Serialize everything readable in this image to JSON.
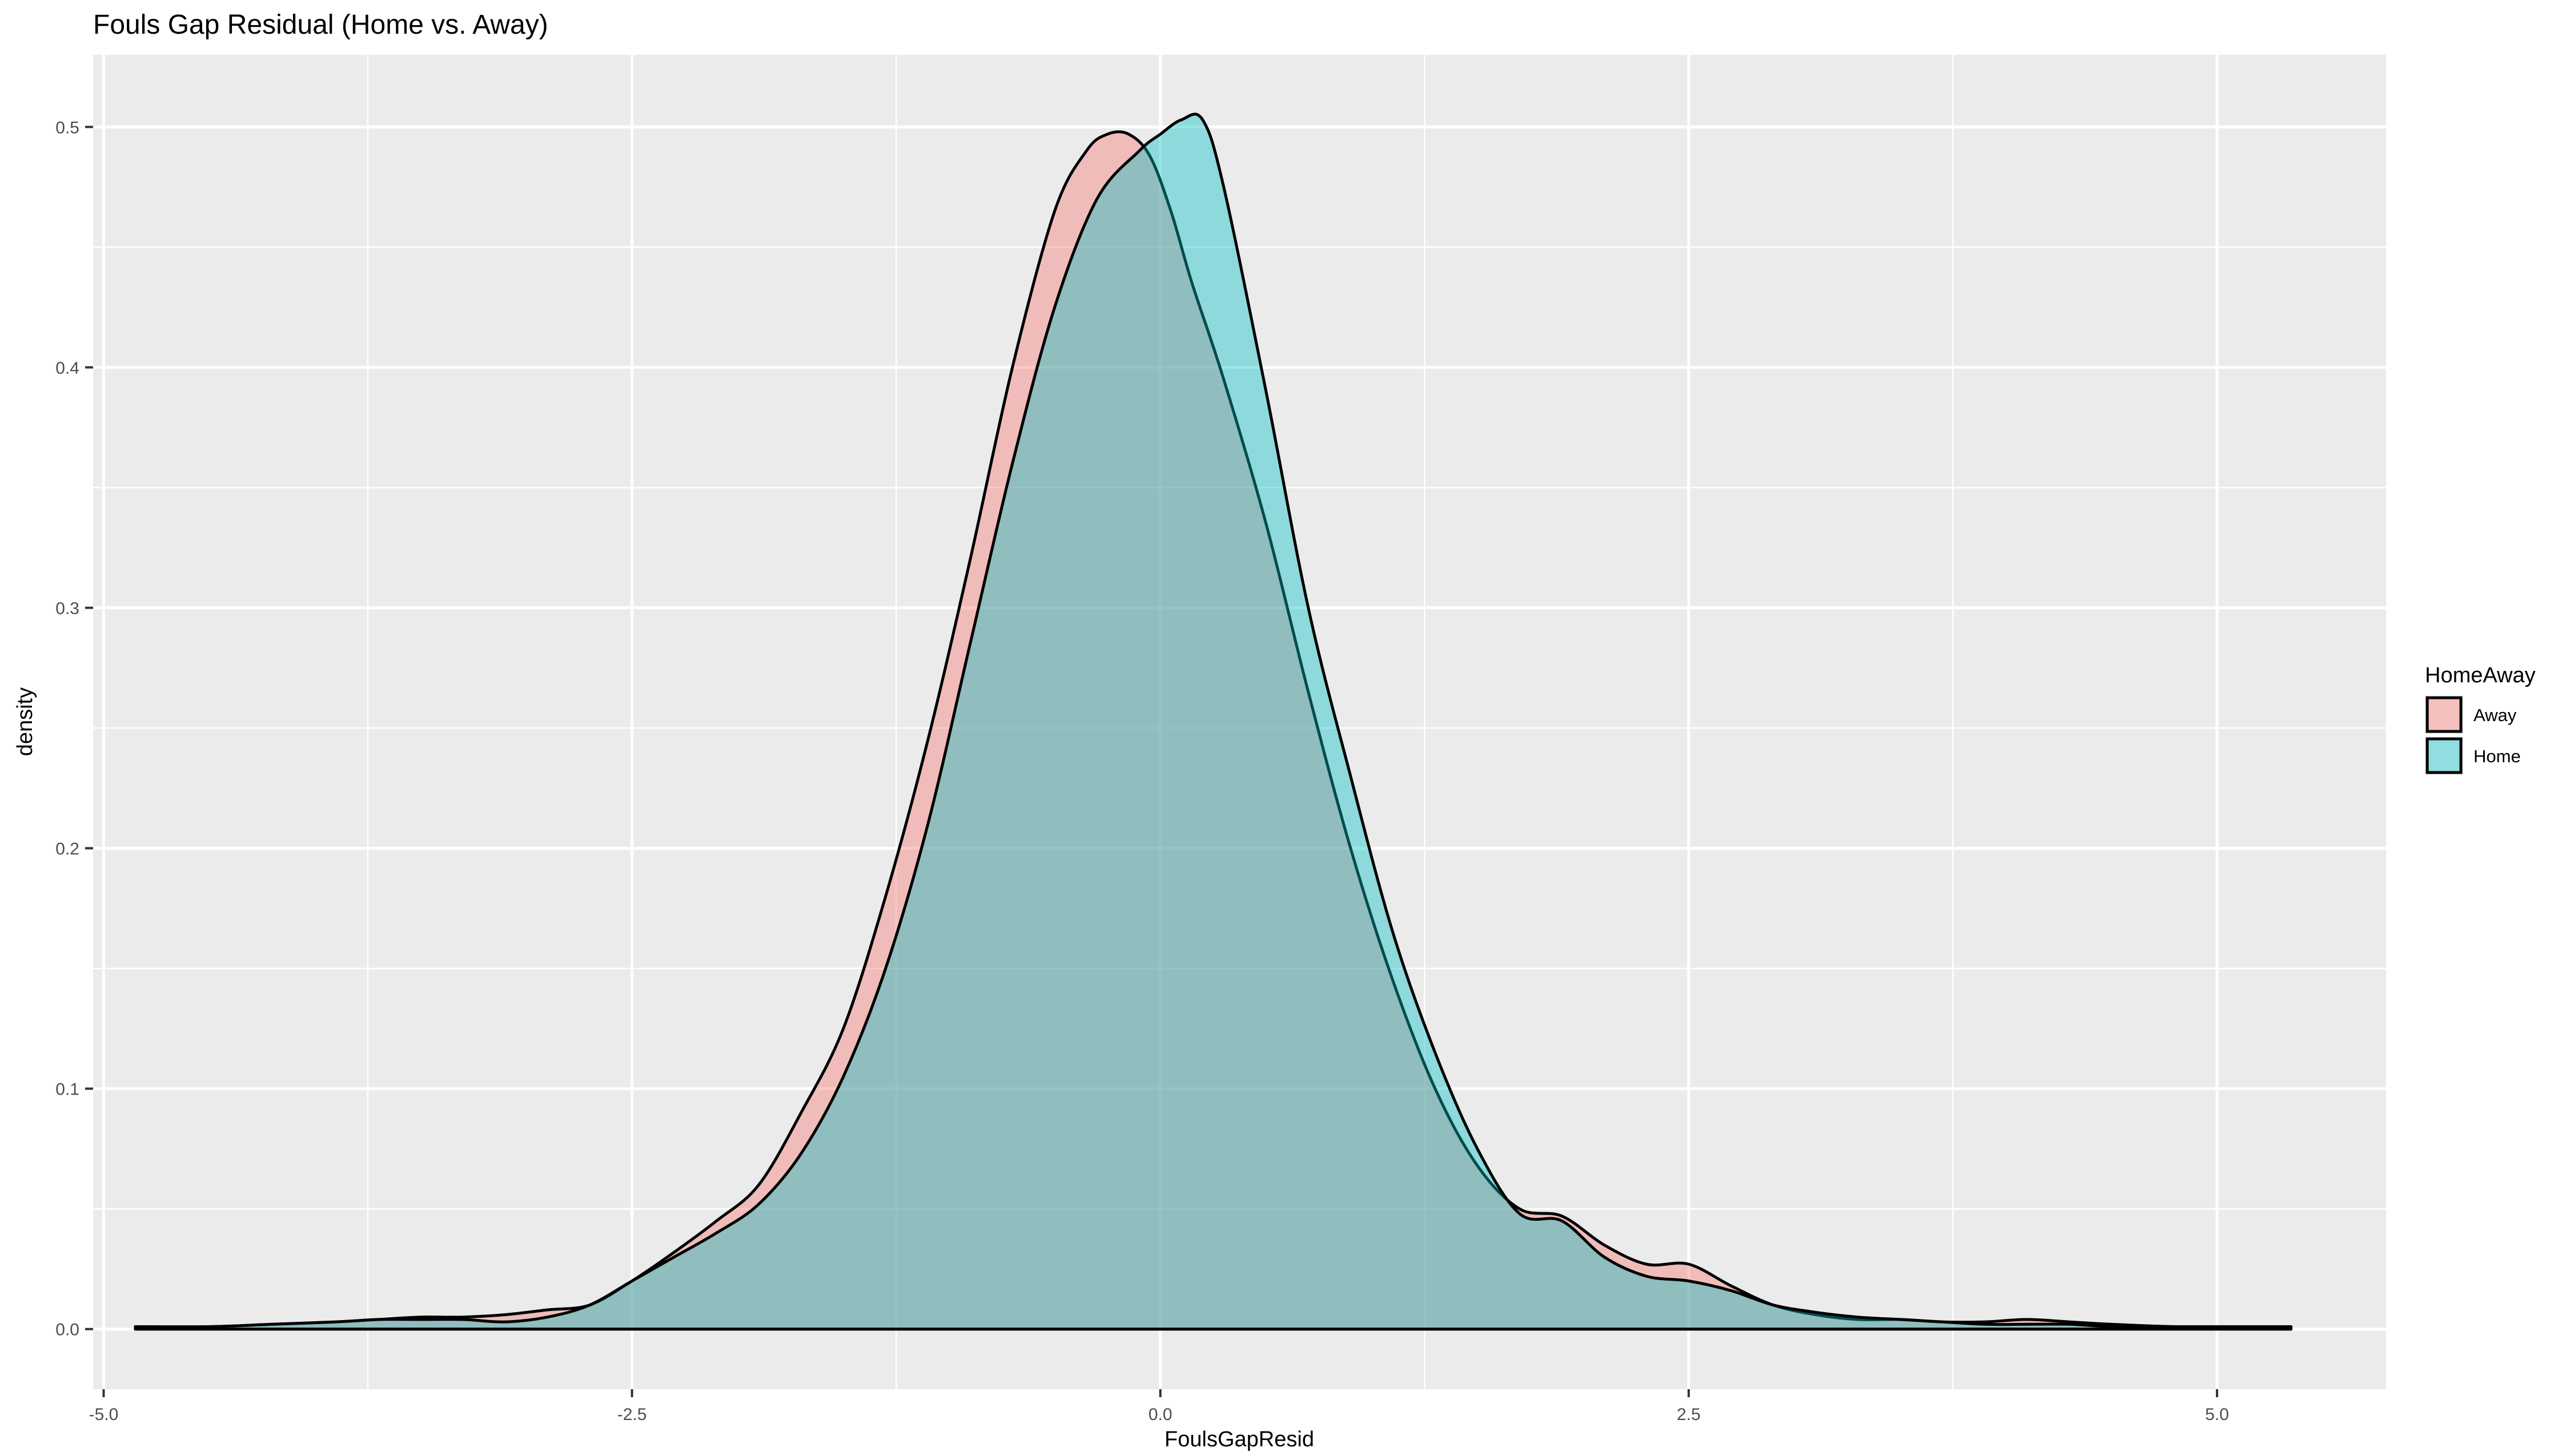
{
  "chart_data": {
    "type": "area",
    "title": "Fouls Gap Residual (Home vs. Away)",
    "xlabel": "FoulsGapResid",
    "ylabel": "density",
    "xlim": [
      -5.05,
      5.8
    ],
    "ylim": [
      -0.025,
      0.53
    ],
    "x_ticks": [
      -5.0,
      -2.5,
      0.0,
      2.5,
      5.0
    ],
    "x_tick_labels": [
      "-5.0",
      "-2.5",
      "0.0",
      "2.5",
      "5.0"
    ],
    "y_ticks": [
      0.0,
      0.1,
      0.2,
      0.3,
      0.4,
      0.5
    ],
    "y_tick_labels": [
      "0.0",
      "0.1",
      "0.2",
      "0.3",
      "0.4",
      "0.5"
    ],
    "grid": true,
    "legend": {
      "title": "HomeAway",
      "position": "right"
    },
    "series": [
      {
        "name": "Away",
        "color": "#F8766D",
        "fill_opacity": 0.4,
        "x": [
          -4.85,
          -4.5,
          -4.2,
          -3.9,
          -3.7,
          -3.5,
          -3.3,
          -3.1,
          -2.9,
          -2.7,
          -2.5,
          -2.3,
          -2.1,
          -1.9,
          -1.7,
          -1.5,
          -1.3,
          -1.1,
          -0.9,
          -0.7,
          -0.5,
          -0.35,
          -0.25,
          -0.15,
          -0.05,
          0.05,
          0.15,
          0.3,
          0.5,
          0.7,
          0.9,
          1.1,
          1.3,
          1.5,
          1.7,
          1.9,
          2.1,
          2.3,
          2.5,
          2.7,
          2.9,
          3.1,
          3.3,
          3.5,
          3.7,
          3.9,
          4.1,
          4.3,
          4.5,
          4.8,
          5.1,
          5.35
        ],
        "y": [
          0.001,
          0.001,
          0.002,
          0.003,
          0.004,
          0.005,
          0.005,
          0.006,
          0.008,
          0.01,
          0.02,
          0.032,
          0.045,
          0.06,
          0.09,
          0.125,
          0.18,
          0.245,
          0.32,
          0.4,
          0.465,
          0.49,
          0.497,
          0.497,
          0.488,
          0.465,
          0.435,
          0.395,
          0.335,
          0.265,
          0.2,
          0.145,
          0.1,
          0.068,
          0.05,
          0.047,
          0.035,
          0.027,
          0.027,
          0.018,
          0.01,
          0.006,
          0.004,
          0.004,
          0.003,
          0.003,
          0.004,
          0.003,
          0.002,
          0.001,
          0.001,
          0.001
        ]
      },
      {
        "name": "Home",
        "color": "#00BFC4",
        "fill_opacity": 0.4,
        "x": [
          -4.85,
          -4.5,
          -4.2,
          -3.9,
          -3.7,
          -3.5,
          -3.3,
          -3.1,
          -2.9,
          -2.7,
          -2.5,
          -2.3,
          -2.1,
          -1.9,
          -1.7,
          -1.5,
          -1.3,
          -1.1,
          -0.9,
          -0.7,
          -0.5,
          -0.3,
          -0.1,
          0.0,
          0.1,
          0.2,
          0.3,
          0.5,
          0.7,
          0.9,
          1.1,
          1.3,
          1.5,
          1.7,
          1.9,
          2.1,
          2.3,
          2.5,
          2.7,
          2.9,
          3.1,
          3.3,
          3.5,
          3.7,
          3.9,
          4.1,
          4.3,
          4.5,
          4.8,
          5.1,
          5.35
        ],
        "y": [
          0.001,
          0.001,
          0.002,
          0.003,
          0.004,
          0.004,
          0.004,
          0.003,
          0.005,
          0.01,
          0.02,
          0.03,
          0.04,
          0.052,
          0.073,
          0.105,
          0.15,
          0.21,
          0.285,
          0.36,
          0.425,
          0.47,
          0.49,
          0.497,
          0.503,
          0.503,
          0.475,
          0.39,
          0.3,
          0.23,
          0.165,
          0.115,
          0.075,
          0.048,
          0.045,
          0.03,
          0.022,
          0.02,
          0.016,
          0.01,
          0.007,
          0.005,
          0.004,
          0.003,
          0.002,
          0.002,
          0.002,
          0.001,
          0.001,
          0.001,
          0.001
        ]
      }
    ]
  }
}
